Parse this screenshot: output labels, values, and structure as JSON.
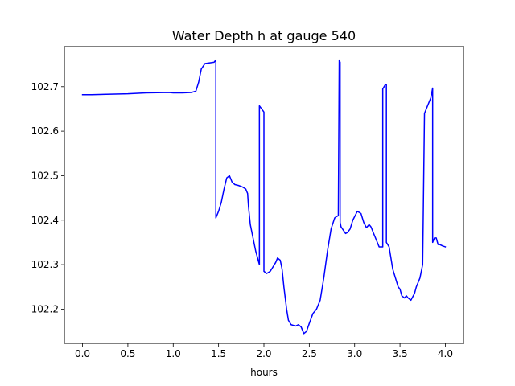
{
  "chart_data": {
    "type": "line",
    "title": "Water Depth h at gauge 540",
    "xlabel": "hours",
    "ylabel": "",
    "xlim": [
      -0.2,
      4.2
    ],
    "ylim": [
      102.123,
      102.79
    ],
    "xticks": [
      0.0,
      0.5,
      1.0,
      1.5,
      2.0,
      2.5,
      3.0,
      3.5,
      4.0
    ],
    "xtick_labels": [
      "0.0",
      "0.5",
      "1.0",
      "1.5",
      "2.0",
      "2.5",
      "3.0",
      "3.5",
      "4.0"
    ],
    "yticks": [
      102.2,
      102.3,
      102.4,
      102.5,
      102.6,
      102.7
    ],
    "ytick_labels": [
      "102.2",
      "102.3",
      "102.4",
      "102.5",
      "102.6",
      "102.7"
    ],
    "grid": false,
    "series": [
      {
        "color": "#0000ff",
        "x": [
          0.0,
          0.1,
          0.5,
          0.7,
          0.95,
          1.0,
          1.1,
          1.2,
          1.25,
          1.28,
          1.31,
          1.35,
          1.38,
          1.45,
          1.47,
          1.47,
          1.5,
          1.53,
          1.56,
          1.59,
          1.62,
          1.65,
          1.68,
          1.72,
          1.76,
          1.8,
          1.82,
          1.83,
          1.85,
          1.88,
          1.91,
          1.95,
          1.95,
          2.0,
          2.0,
          2.03,
          2.07,
          2.1,
          2.13,
          2.15,
          2.18,
          2.2,
          2.22,
          2.25,
          2.27,
          2.3,
          2.35,
          2.38,
          2.41,
          2.44,
          2.47,
          2.5,
          2.54,
          2.58,
          2.62,
          2.66,
          2.7,
          2.74,
          2.78,
          2.8,
          2.82,
          2.83,
          2.84,
          2.84,
          2.85,
          2.9,
          2.92,
          2.95,
          2.98,
          3.03,
          3.07,
          3.1,
          3.13,
          3.16,
          3.18,
          3.21,
          3.24,
          3.27,
          3.31,
          3.31,
          3.34,
          3.35,
          3.35,
          3.38,
          3.4,
          3.42,
          3.45,
          3.48,
          3.5,
          3.52,
          3.55,
          3.57,
          3.59,
          3.62,
          3.66,
          3.68,
          3.72,
          3.75,
          3.77,
          3.77,
          3.8,
          3.84,
          3.86,
          3.86,
          3.88,
          3.9,
          3.92,
          3.94,
          3.97,
          4.0
        ],
        "y": [
          102.682,
          102.682,
          102.684,
          102.686,
          102.687,
          102.686,
          102.686,
          102.687,
          102.69,
          102.71,
          102.74,
          102.752,
          102.753,
          102.755,
          102.76,
          102.405,
          102.42,
          102.44,
          102.47,
          102.495,
          102.5,
          102.485,
          102.48,
          102.478,
          102.475,
          102.47,
          102.46,
          102.43,
          102.39,
          102.36,
          102.33,
          102.3,
          102.657,
          102.643,
          102.285,
          102.28,
          102.285,
          102.295,
          102.305,
          102.315,
          102.31,
          102.29,
          102.25,
          102.2,
          102.175,
          102.165,
          102.162,
          102.165,
          102.16,
          102.145,
          102.15,
          102.168,
          102.19,
          102.2,
          102.22,
          102.27,
          102.33,
          102.38,
          102.405,
          102.408,
          102.41,
          102.76,
          102.755,
          102.395,
          102.385,
          102.37,
          102.372,
          102.38,
          102.4,
          102.42,
          102.415,
          102.395,
          102.383,
          102.39,
          102.385,
          102.37,
          102.355,
          102.34,
          102.34,
          102.695,
          102.705,
          102.705,
          102.35,
          102.34,
          102.315,
          102.29,
          102.27,
          102.25,
          102.245,
          102.23,
          102.225,
          102.23,
          102.225,
          102.22,
          102.235,
          102.25,
          102.27,
          102.3,
          102.64,
          102.64,
          102.655,
          102.675,
          102.697,
          102.35,
          102.36,
          102.36,
          102.345,
          102.345,
          102.342,
          102.34
        ]
      }
    ]
  }
}
